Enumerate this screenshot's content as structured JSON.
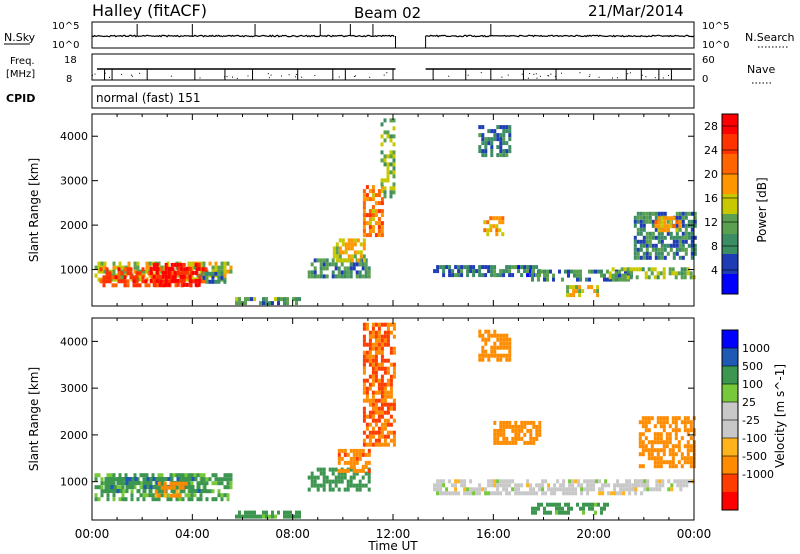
{
  "header": {
    "station": "Halley (fitACF)",
    "beam": "Beam 02",
    "date": "21/Mar/2014"
  },
  "status_panels": {
    "nsky_label": "N.Sky",
    "nsky_ticks": [
      "10^5",
      "10^0"
    ],
    "nsearch_label": "N.Search",
    "nsearch_ticks": [
      "10^5",
      "10^0"
    ],
    "freq_label": "Freq.",
    "freq_unit": "[MHz]",
    "freq_ticks": [
      "18",
      "8"
    ],
    "nave_label": "Nave",
    "nave_ticks": [
      "60",
      "0"
    ],
    "cpid_label": "CPID",
    "cpid_value": "normal (fast) 151"
  },
  "colors": {
    "power": [
      "#0000ff",
      "#1e3cb4",
      "#3c8c64",
      "#5aa050",
      "#c8c800",
      "#ff9600",
      "#ff6400",
      "#ff3200",
      "#ff0000"
    ],
    "velocity": [
      "#ff0000",
      "#ff3c00",
      "#ff8c00",
      "#ffb41e",
      "#c8c8c8",
      "#c8c8c8",
      "#78c83c",
      "#3c9650",
      "#1e5ab4",
      "#0000ff"
    ],
    "ground_scatter": "#c8c8c8"
  },
  "chart_data": [
    {
      "type": "heatmap",
      "title": "Power",
      "xlabel": "Time UT",
      "ylabel": "Slant Range [km]",
      "x_ticks": [
        "00:00",
        "04:00",
        "08:00",
        "12:00",
        "16:00",
        "20:00",
        "00:00"
      ],
      "xlim_hours": [
        0,
        24
      ],
      "ylim_km": [
        180,
        4500
      ],
      "y_ticks": [
        1000,
        2000,
        3000,
        4000
      ],
      "colorbar": {
        "label": "Power [dB]",
        "ticks": [
          4,
          8,
          12,
          16,
          20,
          24,
          28
        ],
        "range": [
          0,
          30
        ]
      },
      "data_gap_hours": [
        12.1,
        13.3
      ],
      "regions": [
        {
          "t0": 0.1,
          "t1": 5.6,
          "r0": 780,
          "r1": 1180,
          "value": 14
        },
        {
          "t0": 0.3,
          "t1": 4.6,
          "r0": 650,
          "r1": 1050,
          "value": 24
        },
        {
          "t0": 2.3,
          "t1": 4.3,
          "r0": 620,
          "r1": 1150,
          "value": 29
        },
        {
          "t0": 4.4,
          "t1": 5.4,
          "r0": 700,
          "r1": 950,
          "value": 8
        },
        {
          "t0": 5.7,
          "t1": 8.3,
          "r0": 250,
          "r1": 380,
          "value": 10
        },
        {
          "t0": 8.6,
          "t1": 11.0,
          "r0": 850,
          "r1": 1250,
          "value": 9
        },
        {
          "t0": 9.6,
          "t1": 10.9,
          "r0": 1200,
          "r1": 1700,
          "value": 16
        },
        {
          "t0": 10.8,
          "t1": 11.6,
          "r0": 1800,
          "r1": 2900,
          "value": 20
        },
        {
          "t0": 11.5,
          "t1": 12.0,
          "r0": 2600,
          "r1": 4400,
          "value": 12
        },
        {
          "t0": 13.6,
          "t1": 17.8,
          "r0": 900,
          "r1": 1100,
          "value": 7
        },
        {
          "t0": 15.4,
          "t1": 16.6,
          "r0": 3600,
          "r1": 4250,
          "value": 7
        },
        {
          "t0": 15.6,
          "t1": 16.4,
          "r0": 1800,
          "r1": 2200,
          "value": 18
        },
        {
          "t0": 17.5,
          "t1": 21.5,
          "r0": 800,
          "r1": 1000,
          "value": 9
        },
        {
          "t0": 18.9,
          "t1": 20.1,
          "r0": 380,
          "r1": 650,
          "value": 16
        },
        {
          "t0": 20.6,
          "t1": 24.0,
          "r0": 850,
          "r1": 1050,
          "value": 13
        },
        {
          "t0": 21.6,
          "t1": 24.0,
          "r0": 1300,
          "r1": 2300,
          "value": 8
        },
        {
          "t0": 22.3,
          "t1": 23.4,
          "r0": 1900,
          "r1": 2200,
          "value": 18
        }
      ]
    },
    {
      "type": "heatmap",
      "title": "Velocity",
      "xlabel": "Time UT",
      "ylabel": "Slant Range [km]",
      "x_ticks": [
        "00:00",
        "04:00",
        "08:00",
        "12:00",
        "16:00",
        "20:00",
        "00:00"
      ],
      "xlim_hours": [
        0,
        24
      ],
      "ylim_km": [
        180,
        4500
      ],
      "y_ticks": [
        1000,
        2000,
        3000,
        4000
      ],
      "colorbar": {
        "label": "Velocity [m s^-1]",
        "ticks": [
          "1000",
          "500",
          "100",
          "25",
          "-25",
          "-100",
          "-500",
          "-1000"
        ]
      },
      "data_gap_hours": [
        12.1,
        13.3
      ],
      "regions": [
        {
          "t0": 0.1,
          "t1": 5.6,
          "r0": 620,
          "r1": 1180,
          "value": 120
        },
        {
          "t0": 0.5,
          "t1": 4.5,
          "r0": 800,
          "r1": 1100,
          "value": 400
        },
        {
          "t0": 2.5,
          "t1": 3.8,
          "r0": 700,
          "r1": 1000,
          "value": -150
        },
        {
          "t0": 5.7,
          "t1": 8.3,
          "r0": 250,
          "r1": 380,
          "value": 150
        },
        {
          "t0": 8.6,
          "t1": 11.0,
          "r0": 850,
          "r1": 1300,
          "value": 300
        },
        {
          "t0": 9.8,
          "t1": 11.0,
          "r0": 1250,
          "r1": 1700,
          "value": -400
        },
        {
          "t0": 10.8,
          "t1": 12.0,
          "r0": 1800,
          "r1": 4400,
          "value": -500
        },
        {
          "t0": 13.6,
          "t1": 22.0,
          "r0": 780,
          "r1": 1050,
          "value": 0
        },
        {
          "t0": 15.4,
          "t1": 16.6,
          "r0": 3600,
          "r1": 4250,
          "value": -300
        },
        {
          "t0": 16.0,
          "t1": 17.9,
          "r0": 1800,
          "r1": 2300,
          "value": -200
        },
        {
          "t0": 17.5,
          "t1": 20.5,
          "r0": 300,
          "r1": 550,
          "value": 150
        },
        {
          "t0": 21.5,
          "t1": 24.0,
          "r0": 850,
          "r1": 1050,
          "value": 0
        },
        {
          "t0": 21.8,
          "t1": 24.0,
          "r0": 1300,
          "r1": 2400,
          "value": -200
        }
      ]
    }
  ]
}
